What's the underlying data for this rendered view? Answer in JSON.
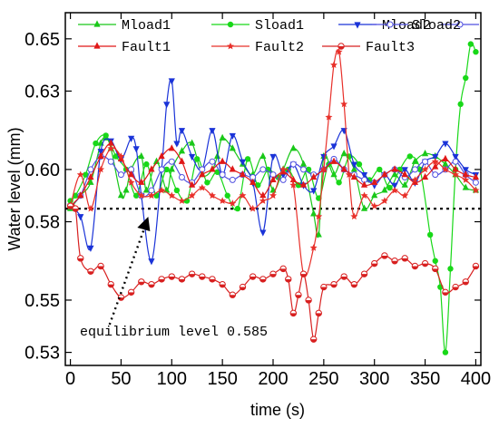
{
  "chart_data": {
    "type": "line",
    "xlabel": "time (s)",
    "ylabel": "Water level (mm)",
    "xlim": [
      -5,
      405
    ],
    "ylim": [
      0.525,
      0.66
    ],
    "x_ticks": [
      0,
      50,
      100,
      150,
      200,
      250,
      300,
      350,
      400
    ],
    "y_ticks": [
      0.53,
      0.55,
      0.58,
      0.6,
      0.63,
      0.65
    ],
    "y_tick_labels": [
      "0.53",
      "0.55",
      "0.58",
      "0.60",
      "0.63",
      "0.65"
    ],
    "grid": false,
    "legend_position": "top",
    "reference_line": {
      "y": 0.585,
      "style": "dotted",
      "color": "#000000"
    },
    "annotation": {
      "text": "equilibrium level 0.585",
      "x": 10,
      "y": 0.533,
      "arrow_to": {
        "x": 75,
        "y": 0.584
      }
    },
    "series": [
      {
        "name": "Mload1",
        "color": "#19c819",
        "marker": "triangle-up",
        "x": [
          0,
          10,
          20,
          30,
          35,
          40,
          50,
          55,
          60,
          70,
          75,
          85,
          95,
          100,
          110,
          120,
          130,
          140,
          145,
          150,
          160,
          170,
          180,
          190,
          200,
          210,
          220,
          230,
          240,
          245,
          250,
          260,
          270,
          280,
          290,
          300,
          310,
          320,
          330,
          340,
          350,
          360,
          370,
          380,
          390,
          400
        ],
        "y": [
          0.585,
          0.59,
          0.595,
          0.61,
          0.612,
          0.608,
          0.59,
          0.592,
          0.6,
          0.605,
          0.592,
          0.603,
          0.592,
          0.6,
          0.607,
          0.61,
          0.598,
          0.6,
          0.605,
          0.612,
          0.608,
          0.602,
          0.598,
          0.605,
          0.592,
          0.6,
          0.608,
          0.602,
          0.583,
          0.575,
          0.605,
          0.598,
          0.606,
          0.6,
          0.585,
          0.59,
          0.592,
          0.598,
          0.594,
          0.603,
          0.606,
          0.605,
          0.602,
          0.598,
          0.593,
          0.592
        ]
      },
      {
        "name": "Sload1",
        "color": "#18d818",
        "marker": "circle",
        "x": [
          0,
          5,
          15,
          25,
          35,
          45,
          55,
          65,
          75,
          85,
          95,
          105,
          115,
          125,
          135,
          145,
          155,
          165,
          175,
          185,
          195,
          205,
          215,
          225,
          235,
          245,
          255,
          265,
          275,
          285,
          295,
          305,
          315,
          325,
          335,
          345,
          355,
          360,
          365,
          370,
          375,
          380,
          385,
          390,
          395,
          400
        ],
        "y": [
          0.588,
          0.59,
          0.598,
          0.61,
          0.613,
          0.605,
          0.6,
          0.59,
          0.602,
          0.59,
          0.6,
          0.592,
          0.588,
          0.604,
          0.595,
          0.599,
          0.59,
          0.585,
          0.604,
          0.594,
          0.6,
          0.597,
          0.6,
          0.594,
          0.6,
          0.589,
          0.602,
          0.595,
          0.605,
          0.602,
          0.596,
          0.6,
          0.593,
          0.6,
          0.605,
          0.6,
          0.575,
          0.565,
          0.555,
          0.53,
          0.562,
          0.6,
          0.625,
          0.635,
          0.648,
          0.645
        ]
      },
      {
        "name": "Mload2",
        "color": "#1a33d8",
        "marker": "triangle-down",
        "x": [
          0,
          10,
          20,
          30,
          40,
          50,
          60,
          65,
          70,
          80,
          90,
          95,
          100,
          105,
          110,
          120,
          130,
          140,
          150,
          160,
          170,
          180,
          190,
          200,
          210,
          220,
          230,
          240,
          250,
          260,
          270,
          280,
          290,
          300,
          310,
          320,
          330,
          340,
          350,
          360,
          370,
          380,
          390,
          400
        ],
        "y": [
          0.586,
          0.582,
          0.57,
          0.607,
          0.611,
          0.604,
          0.612,
          0.608,
          0.59,
          0.565,
          0.6,
          0.625,
          0.634,
          0.61,
          0.615,
          0.605,
          0.6,
          0.615,
          0.598,
          0.613,
          0.603,
          0.595,
          0.576,
          0.605,
          0.598,
          0.602,
          0.594,
          0.592,
          0.605,
          0.609,
          0.615,
          0.602,
          0.598,
          0.594,
          0.598,
          0.594,
          0.6,
          0.595,
          0.603,
          0.605,
          0.61,
          0.605,
          0.6,
          0.598
        ]
      },
      {
        "name": "Sload2",
        "color": "#5050e0",
        "marker": "open-circle",
        "x": [
          0,
          10,
          20,
          30,
          40,
          50,
          60,
          70,
          80,
          90,
          100,
          110,
          120,
          130,
          140,
          150,
          160,
          170,
          180,
          190,
          200,
          210,
          220,
          230,
          240,
          250,
          260,
          270,
          280,
          290,
          300,
          310,
          320,
          330,
          340,
          350,
          360,
          370,
          380,
          390,
          400
        ],
        "y": [
          0.586,
          0.59,
          0.6,
          0.605,
          0.603,
          0.598,
          0.6,
          0.59,
          0.592,
          0.6,
          0.603,
          0.597,
          0.595,
          0.6,
          0.603,
          0.598,
          0.596,
          0.598,
          0.597,
          0.6,
          0.598,
          0.596,
          0.602,
          0.6,
          0.598,
          0.6,
          0.604,
          0.6,
          0.598,
          0.596,
          0.595,
          0.598,
          0.6,
          0.597,
          0.6,
          0.603,
          0.598,
          0.6,
          0.603,
          0.598,
          0.595
        ]
      },
      {
        "name": "Fault1",
        "color": "#e01818",
        "marker": "triangle-up",
        "x": [
          0,
          10,
          20,
          30,
          40,
          50,
          60,
          70,
          80,
          90,
          100,
          110,
          120,
          130,
          140,
          150,
          160,
          170,
          180,
          190,
          200,
          210,
          220,
          230,
          240,
          250,
          260,
          270,
          280,
          290,
          300,
          310,
          320,
          330,
          340,
          350,
          360,
          370,
          380,
          390,
          400
        ],
        "y": [
          0.586,
          0.59,
          0.597,
          0.605,
          0.61,
          0.604,
          0.598,
          0.595,
          0.6,
          0.605,
          0.608,
          0.603,
          0.594,
          0.598,
          0.6,
          0.603,
          0.6,
          0.598,
          0.595,
          0.59,
          0.596,
          0.599,
          0.596,
          0.594,
          0.597,
          0.6,
          0.603,
          0.6,
          0.597,
          0.594,
          0.595,
          0.598,
          0.6,
          0.598,
          0.595,
          0.597,
          0.601,
          0.604,
          0.6,
          0.598,
          0.597
        ]
      },
      {
        "name": "Fault2",
        "color": "#e8302a",
        "marker": "star",
        "x": [
          0,
          10,
          20,
          30,
          40,
          50,
          60,
          70,
          80,
          90,
          100,
          110,
          120,
          130,
          140,
          150,
          160,
          170,
          180,
          190,
          200,
          210,
          220,
          230,
          240,
          245,
          250,
          255,
          260,
          265,
          270,
          275,
          280,
          290,
          300,
          310,
          320,
          330,
          340,
          350,
          360,
          370,
          380,
          390,
          400
        ],
        "y": [
          0.586,
          0.598,
          0.585,
          0.6,
          0.608,
          0.605,
          0.595,
          0.59,
          0.59,
          0.592,
          0.59,
          0.588,
          0.59,
          0.593,
          0.59,
          0.588,
          0.587,
          0.59,
          0.585,
          0.588,
          0.59,
          0.6,
          0.594,
          0.56,
          0.57,
          0.582,
          0.6,
          0.62,
          0.64,
          0.645,
          0.625,
          0.598,
          0.582,
          0.59,
          0.586,
          0.588,
          0.592,
          0.59,
          0.596,
          0.6,
          0.603,
          0.6,
          0.598,
          0.596,
          0.592
        ]
      },
      {
        "name": "Fault3",
        "color": "#d82020",
        "marker": "half-circle",
        "x": [
          0,
          5,
          10,
          20,
          30,
          40,
          50,
          60,
          70,
          80,
          90,
          100,
          110,
          120,
          130,
          140,
          150,
          160,
          170,
          180,
          190,
          200,
          210,
          215,
          220,
          225,
          230,
          235,
          240,
          245,
          250,
          260,
          270,
          280,
          290,
          300,
          310,
          320,
          330,
          340,
          350,
          360,
          370,
          380,
          390,
          400
        ],
        "y": [
          0.586,
          0.585,
          0.566,
          0.561,
          0.563,
          0.556,
          0.551,
          0.553,
          0.557,
          0.556,
          0.558,
          0.559,
          0.558,
          0.56,
          0.559,
          0.558,
          0.556,
          0.552,
          0.555,
          0.559,
          0.558,
          0.56,
          0.562,
          0.558,
          0.545,
          0.552,
          0.56,
          0.55,
          0.535,
          0.545,
          0.555,
          0.556,
          0.559,
          0.556,
          0.56,
          0.564,
          0.567,
          0.565,
          0.566,
          0.563,
          0.564,
          0.562,
          0.553,
          0.555,
          0.557,
          0.563
        ]
      }
    ]
  }
}
